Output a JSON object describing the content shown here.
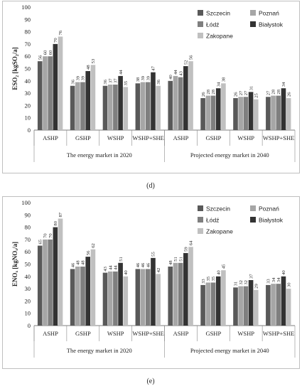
{
  "colors": {
    "Szczecin": "#595959",
    "Poznań": "#a6a6a6",
    "Łódź": "#7f7f7f",
    "Białystok": "#333333",
    "Zakopane": "#c0c0c0"
  },
  "chart_data": [
    {
      "type": "bar",
      "panel_label": "(d)",
      "ylabel": "ESO₂ [kgSO₂/a]",
      "ylim": [
        0,
        100
      ],
      "yticks": [
        0,
        10,
        20,
        30,
        40,
        50,
        60,
        70,
        80,
        90,
        100
      ],
      "legend": [
        "Szczecin",
        "Poznań",
        "Łódź",
        "Białystok",
        "Zakopane"
      ],
      "legend_position": "top-right",
      "groups": [
        {
          "label": "The energy market in 2020",
          "categories": [
            {
              "name": "ASHP",
              "values": [
                56,
                60,
                60,
                70,
                76
              ]
            },
            {
              "name": "GSHP",
              "values": [
                36,
                39,
                39,
                48,
                53
              ]
            },
            {
              "name": "WSHP",
              "values": [
                36,
                37,
                37,
                44,
                35
              ]
            },
            {
              "name": "WSHP+SHE",
              "values": [
                38,
                39,
                39,
                47,
                36
              ]
            }
          ]
        },
        {
          "label": "Projected energy market in 2040",
          "categories": [
            {
              "name": "ASHP",
              "values": [
                40,
                44,
                43,
                52,
                56
              ]
            },
            {
              "name": "GSHP",
              "values": [
                26,
                28,
                28,
                34,
                38
              ]
            },
            {
              "name": "WSHP",
              "values": [
                26,
                27,
                27,
                31,
                25
              ]
            },
            {
              "name": "WSHP+SHE",
              "values": [
                27,
                28,
                28,
                34,
                26
              ]
            }
          ]
        }
      ]
    },
    {
      "type": "bar",
      "panel_label": "(e)",
      "ylabel": "ENOₓ [kgNOₓ/a]",
      "ylim": [
        0,
        100
      ],
      "yticks": [
        0,
        10,
        20,
        30,
        40,
        50,
        60,
        70,
        80,
        90,
        100
      ],
      "legend": [
        "Szczecin",
        "Poznań",
        "Łódź",
        "Białystok",
        "Zakopane"
      ],
      "legend_position": "top-right",
      "groups": [
        {
          "label": "The energy market in 2020",
          "categories": [
            {
              "name": "ASHP",
              "values": [
                65,
                70,
                70,
                80,
                87
              ]
            },
            {
              "name": "GSHP",
              "values": [
                46,
                48,
                48,
                56,
                62
              ]
            },
            {
              "name": "WSHP",
              "values": [
                43,
                44,
                44,
                51,
                40
              ]
            },
            {
              "name": "WSHP+SHE",
              "values": [
                46,
                46,
                46,
                55,
                42
              ]
            }
          ]
        },
        {
          "label": "Projected energy market in 2040",
          "categories": [
            {
              "name": "ASHP",
              "values": [
                48,
                51,
                51,
                59,
                64
              ]
            },
            {
              "name": "GSHP",
              "values": [
                33,
                35,
                35,
                40,
                45
              ]
            },
            {
              "name": "WSHP",
              "values": [
                31,
                32,
                32,
                37,
                29
              ]
            },
            {
              "name": "WSHP+SHE",
              "values": [
                33,
                34,
                34,
                40,
                30
              ]
            }
          ]
        }
      ]
    }
  ]
}
